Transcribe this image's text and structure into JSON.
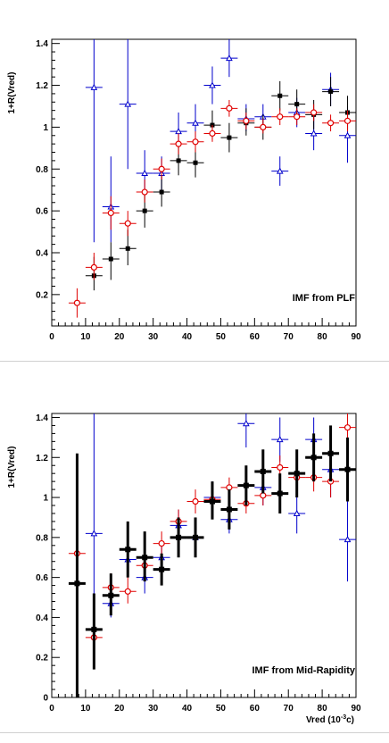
{
  "chart_data": [
    {
      "type": "scatter",
      "title": "",
      "annotation": "IMF from PLF",
      "ylabel": "1+R(Vred)",
      "xlabel": "",
      "xlim": [
        0,
        90
      ],
      "ylim": [
        0.05,
        1.42
      ],
      "x_ticks": [
        "0",
        "10",
        "20",
        "30",
        "40",
        "50",
        "60",
        "70",
        "80",
        "90"
      ],
      "y_ticks": [
        "0.2",
        "0.4",
        "0.6",
        "0.8",
        "1",
        "1.2",
        "1.4"
      ],
      "grid": false,
      "series": [
        {
          "color": "#0000cc",
          "marker": "triangle-open",
          "points": [
            {
              "x": 12.5,
              "y": 1.19,
              "ylo": 0.45,
              "yhi": 1.42
            },
            {
              "x": 17.5,
              "y": 0.62,
              "ylo": 0.45,
              "yhi": 0.86
            },
            {
              "x": 22.5,
              "y": 1.11,
              "ylo": 0.8,
              "yhi": 1.42
            },
            {
              "x": 27.5,
              "y": 0.78,
              "ylo": 0.68,
              "yhi": 0.89
            },
            {
              "x": 32.5,
              "y": 0.78,
              "ylo": 0.68,
              "yhi": 0.86
            },
            {
              "x": 37.5,
              "y": 0.98,
              "ylo": 0.9,
              "yhi": 1.07
            },
            {
              "x": 42.5,
              "y": 1.02,
              "ylo": 0.95,
              "yhi": 1.11
            },
            {
              "x": 47.5,
              "y": 1.2,
              "ylo": 1.11,
              "yhi": 1.29
            },
            {
              "x": 52.5,
              "y": 1.33,
              "ylo": 1.24,
              "yhi": 1.42
            },
            {
              "x": 57.5,
              "y": 1.04,
              "ylo": 0.98,
              "yhi": 1.11
            },
            {
              "x": 62.5,
              "y": 1.05,
              "ylo": 0.99,
              "yhi": 1.11
            },
            {
              "x": 67.5,
              "y": 0.79,
              "ylo": 0.72,
              "yhi": 0.86
            },
            {
              "x": 72.5,
              "y": 1.07,
              "ylo": 1.0,
              "yhi": 1.14
            },
            {
              "x": 77.5,
              "y": 0.97,
              "ylo": 0.89,
              "yhi": 1.05
            },
            {
              "x": 82.5,
              "y": 1.18,
              "ylo": 1.1,
              "yhi": 1.26
            },
            {
              "x": 87.5,
              "y": 0.96,
              "ylo": 0.83,
              "yhi": 1.1
            }
          ]
        },
        {
          "color": "#000000",
          "marker": "square",
          "points": [
            {
              "x": 12.5,
              "y": 0.29,
              "ylo": 0.22,
              "yhi": 0.38
            },
            {
              "x": 17.5,
              "y": 0.37,
              "ylo": 0.27,
              "yhi": 0.45
            },
            {
              "x": 22.5,
              "y": 0.42,
              "ylo": 0.34,
              "yhi": 0.51
            },
            {
              "x": 27.5,
              "y": 0.6,
              "ylo": 0.52,
              "yhi": 0.68
            },
            {
              "x": 32.5,
              "y": 0.69,
              "ylo": 0.62,
              "yhi": 0.77
            },
            {
              "x": 37.5,
              "y": 0.84,
              "ylo": 0.77,
              "yhi": 0.91
            },
            {
              "x": 42.5,
              "y": 0.83,
              "ylo": 0.76,
              "yhi": 0.9
            },
            {
              "x": 47.5,
              "y": 1.01,
              "ylo": 0.94,
              "yhi": 1.08
            },
            {
              "x": 52.5,
              "y": 0.95,
              "ylo": 0.88,
              "yhi": 1.02
            },
            {
              "x": 57.5,
              "y": 1.02,
              "ylo": 0.96,
              "yhi": 1.09
            },
            {
              "x": 62.5,
              "y": 1.0,
              "ylo": 0.94,
              "yhi": 1.06
            },
            {
              "x": 67.5,
              "y": 1.15,
              "ylo": 1.08,
              "yhi": 1.22
            },
            {
              "x": 72.5,
              "y": 1.11,
              "ylo": 1.04,
              "yhi": 1.18
            },
            {
              "x": 77.5,
              "y": 1.06,
              "ylo": 0.99,
              "yhi": 1.13
            },
            {
              "x": 82.5,
              "y": 1.17,
              "ylo": 1.1,
              "yhi": 1.24
            },
            {
              "x": 87.5,
              "y": 1.07,
              "ylo": 0.99,
              "yhi": 1.15
            }
          ]
        },
        {
          "color": "#e00000",
          "marker": "circle-open",
          "points": [
            {
              "x": 7.5,
              "y": 0.16,
              "ylo": 0.09,
              "yhi": 0.23
            },
            {
              "x": 12.5,
              "y": 0.33,
              "ylo": 0.27,
              "yhi": 0.4
            },
            {
              "x": 17.5,
              "y": 0.59,
              "ylo": 0.51,
              "yhi": 0.67
            },
            {
              "x": 22.5,
              "y": 0.54,
              "ylo": 0.48,
              "yhi": 0.6
            },
            {
              "x": 27.5,
              "y": 0.69,
              "ylo": 0.64,
              "yhi": 0.75
            },
            {
              "x": 32.5,
              "y": 0.8,
              "ylo": 0.75,
              "yhi": 0.85
            },
            {
              "x": 37.5,
              "y": 0.92,
              "ylo": 0.87,
              "yhi": 0.97
            },
            {
              "x": 42.5,
              "y": 0.93,
              "ylo": 0.88,
              "yhi": 0.98
            },
            {
              "x": 47.5,
              "y": 0.97,
              "ylo": 0.93,
              "yhi": 1.01
            },
            {
              "x": 52.5,
              "y": 1.09,
              "ylo": 1.05,
              "yhi": 1.13
            },
            {
              "x": 57.5,
              "y": 1.03,
              "ylo": 0.99,
              "yhi": 1.07
            },
            {
              "x": 62.5,
              "y": 1.0,
              "ylo": 0.97,
              "yhi": 1.04
            },
            {
              "x": 67.5,
              "y": 1.05,
              "ylo": 1.01,
              "yhi": 1.09
            },
            {
              "x": 72.5,
              "y": 1.05,
              "ylo": 1.01,
              "yhi": 1.09
            },
            {
              "x": 77.5,
              "y": 1.07,
              "ylo": 1.03,
              "yhi": 1.11
            },
            {
              "x": 82.5,
              "y": 1.02,
              "ylo": 0.98,
              "yhi": 1.06
            },
            {
              "x": 87.5,
              "y": 1.03,
              "ylo": 0.98,
              "yhi": 1.08
            }
          ]
        }
      ]
    },
    {
      "type": "scatter",
      "title": "",
      "annotation": "IMF from Mid-Rapidity",
      "ylabel": "1+R(Vred)",
      "xlabel": "Vred (10",
      "xlabel_sup": "-3",
      "xlabel_tail": "c)",
      "xlim": [
        0,
        90
      ],
      "ylim": [
        0,
        1.42
      ],
      "x_ticks": [
        "0",
        "10",
        "20",
        "30",
        "40",
        "50",
        "60",
        "70",
        "80",
        "90"
      ],
      "y_ticks": [
        "0",
        "0.2",
        "0.4",
        "0.6",
        "0.8",
        "1",
        "1.2",
        "1.4"
      ],
      "grid": false,
      "series": [
        {
          "color": "#0000cc",
          "marker": "triangle-open",
          "points": [
            {
              "x": 12.5,
              "y": 0.82,
              "ylo": 0.2,
              "yhi": 1.42
            },
            {
              "x": 17.5,
              "y": 0.47,
              "ylo": 0.4,
              "yhi": 0.55
            },
            {
              "x": 22.5,
              "y": 0.69,
              "ylo": 0.6,
              "yhi": 0.78
            },
            {
              "x": 27.5,
              "y": 0.6,
              "ylo": 0.52,
              "yhi": 0.69
            },
            {
              "x": 32.5,
              "y": 0.7,
              "ylo": 0.62,
              "yhi": 0.78
            },
            {
              "x": 37.5,
              "y": 0.86,
              "ylo": 0.78,
              "yhi": 0.94
            },
            {
              "x": 42.5,
              "y": 0.8,
              "ylo": 0.72,
              "yhi": 0.88
            },
            {
              "x": 47.5,
              "y": 1.0,
              "ylo": 0.93,
              "yhi": 1.08
            },
            {
              "x": 52.5,
              "y": 0.89,
              "ylo": 0.82,
              "yhi": 0.97
            },
            {
              "x": 57.5,
              "y": 1.37,
              "ylo": 1.25,
              "yhi": 1.42
            },
            {
              "x": 62.5,
              "y": 1.05,
              "ylo": 0.96,
              "yhi": 1.15
            },
            {
              "x": 67.5,
              "y": 1.29,
              "ylo": 1.18,
              "yhi": 1.4
            },
            {
              "x": 72.5,
              "y": 0.92,
              "ylo": 0.82,
              "yhi": 1.02
            },
            {
              "x": 77.5,
              "y": 1.29,
              "ylo": 1.16,
              "yhi": 1.4
            },
            {
              "x": 82.5,
              "y": 1.14,
              "ylo": 1.0,
              "yhi": 1.28
            },
            {
              "x": 87.5,
              "y": 0.79,
              "ylo": 0.58,
              "yhi": 1.0
            }
          ]
        },
        {
          "color": "#e00000",
          "marker": "circle-open",
          "points": [
            {
              "x": 7.5,
              "y": 0.72,
              "ylo": 0.58,
              "yhi": 0.86
            },
            {
              "x": 12.5,
              "y": 0.3,
              "ylo": 0.23,
              "yhi": 0.37
            },
            {
              "x": 17.5,
              "y": 0.55,
              "ylo": 0.48,
              "yhi": 0.62
            },
            {
              "x": 22.5,
              "y": 0.53,
              "ylo": 0.47,
              "yhi": 0.6
            },
            {
              "x": 27.5,
              "y": 0.66,
              "ylo": 0.6,
              "yhi": 0.72
            },
            {
              "x": 32.5,
              "y": 0.77,
              "ylo": 0.71,
              "yhi": 0.83
            },
            {
              "x": 37.5,
              "y": 0.88,
              "ylo": 0.82,
              "yhi": 0.94
            },
            {
              "x": 42.5,
              "y": 0.98,
              "ylo": 0.92,
              "yhi": 1.04
            },
            {
              "x": 47.5,
              "y": 0.99,
              "ylo": 0.94,
              "yhi": 1.04
            },
            {
              "x": 52.5,
              "y": 1.05,
              "ylo": 1.0,
              "yhi": 1.1
            },
            {
              "x": 57.5,
              "y": 0.97,
              "ylo": 0.92,
              "yhi": 1.02
            },
            {
              "x": 62.5,
              "y": 1.01,
              "ylo": 0.96,
              "yhi": 1.07
            },
            {
              "x": 67.5,
              "y": 1.15,
              "ylo": 1.09,
              "yhi": 1.21
            },
            {
              "x": 72.5,
              "y": 1.1,
              "ylo": 1.04,
              "yhi": 1.16
            },
            {
              "x": 77.5,
              "y": 1.1,
              "ylo": 1.03,
              "yhi": 1.17
            },
            {
              "x": 82.5,
              "y": 1.08,
              "ylo": 1.0,
              "yhi": 1.15
            },
            {
              "x": 87.5,
              "y": 1.35,
              "ylo": 1.26,
              "yhi": 1.42
            }
          ]
        },
        {
          "color": "#000000",
          "marker": "thick-cross",
          "points": [
            {
              "x": 7.5,
              "y": 0.57,
              "ylo": 0.0,
              "yhi": 1.22
            },
            {
              "x": 12.5,
              "y": 0.34,
              "ylo": 0.14,
              "yhi": 0.52
            },
            {
              "x": 17.5,
              "y": 0.51,
              "ylo": 0.41,
              "yhi": 0.62
            },
            {
              "x": 22.5,
              "y": 0.74,
              "ylo": 0.6,
              "yhi": 0.88
            },
            {
              "x": 27.5,
              "y": 0.7,
              "ylo": 0.58,
              "yhi": 0.83
            },
            {
              "x": 32.5,
              "y": 0.64,
              "ylo": 0.56,
              "yhi": 0.72
            },
            {
              "x": 37.5,
              "y": 0.8,
              "ylo": 0.7,
              "yhi": 0.9
            },
            {
              "x": 42.5,
              "y": 0.8,
              "ylo": 0.7,
              "yhi": 0.9
            },
            {
              "x": 47.5,
              "y": 0.98,
              "ylo": 0.89,
              "yhi": 1.08
            },
            {
              "x": 52.5,
              "y": 0.94,
              "ylo": 0.84,
              "yhi": 1.04
            },
            {
              "x": 57.5,
              "y": 1.06,
              "ylo": 0.96,
              "yhi": 1.16
            },
            {
              "x": 62.5,
              "y": 1.13,
              "ylo": 1.02,
              "yhi": 1.24
            },
            {
              "x": 67.5,
              "y": 1.02,
              "ylo": 0.92,
              "yhi": 1.12
            },
            {
              "x": 72.5,
              "y": 1.12,
              "ylo": 1.0,
              "yhi": 1.24
            },
            {
              "x": 77.5,
              "y": 1.2,
              "ylo": 1.08,
              "yhi": 1.32
            },
            {
              "x": 82.5,
              "y": 1.22,
              "ylo": 1.08,
              "yhi": 1.36
            },
            {
              "x": 87.5,
              "y": 1.14,
              "ylo": 0.98,
              "yhi": 1.3
            }
          ]
        }
      ]
    }
  ]
}
